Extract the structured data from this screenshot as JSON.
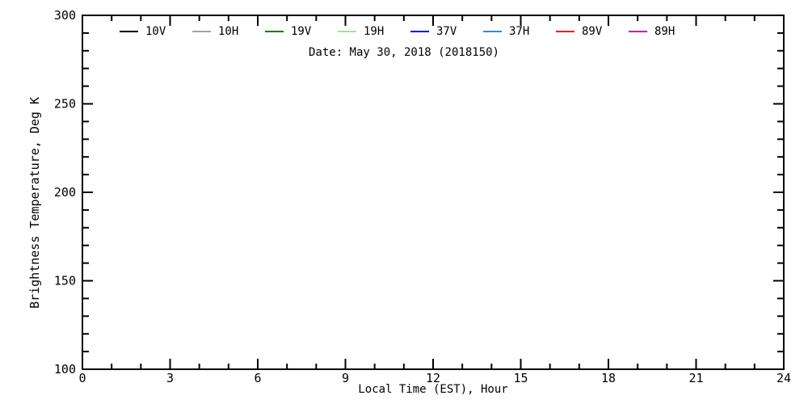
{
  "chart_data": {
    "type": "line",
    "title": "Date: May 30, 2018 (2018150)",
    "xlabel": "Local Time (EST), Hour",
    "ylabel": "Brightness Temperature, Deg K",
    "xlim": [
      0,
      24
    ],
    "ylim": [
      100,
      300
    ],
    "x_major_ticks": [
      0,
      3,
      6,
      9,
      12,
      15,
      18,
      21,
      24
    ],
    "x_minor_step": 1,
    "y_major_ticks": [
      100,
      150,
      200,
      250,
      300
    ],
    "y_minor_step": 10,
    "grid": false,
    "legend_position": "top-inside",
    "axis_color": "#000000",
    "background_color": "#ffffff",
    "series": [
      {
        "name": "10V",
        "color": "#000000",
        "x": [],
        "values": []
      },
      {
        "name": "10H",
        "color": "#a3a3a3",
        "x": [],
        "values": []
      },
      {
        "name": "19V",
        "color": "#008000",
        "x": [],
        "values": []
      },
      {
        "name": "19H",
        "color": "#90ee90",
        "x": [],
        "values": []
      },
      {
        "name": "37V",
        "color": "#0000ff",
        "x": [],
        "values": []
      },
      {
        "name": "37H",
        "color": "#1e90ff",
        "x": [],
        "values": []
      },
      {
        "name": "89V",
        "color": "#ff0000",
        "x": [],
        "values": []
      },
      {
        "name": "89H",
        "color": "#cc00cc",
        "x": [],
        "values": []
      }
    ],
    "notes": "Plot area contains no data curves for this date."
  }
}
